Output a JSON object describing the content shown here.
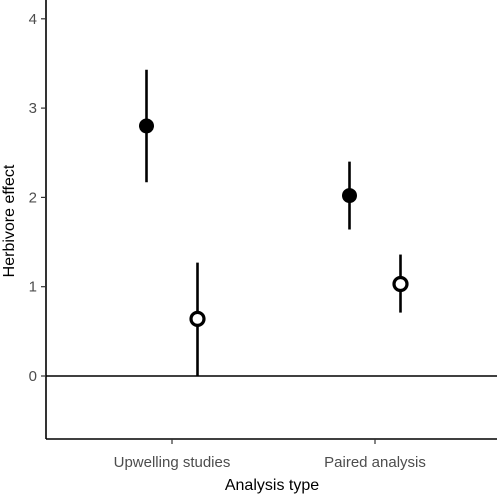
{
  "chart_data": {
    "type": "scatter",
    "title": "",
    "xlabel": "Analysis type",
    "ylabel": "Herbivore effect",
    "categories": [
      "Upwelling studies",
      "Paired analysis"
    ],
    "ylim": [
      -0.7,
      4.25
    ],
    "yticks": [
      0,
      1,
      2,
      3,
      4
    ],
    "reference_line_y": 0,
    "grid": false,
    "legend": "none",
    "series": [
      {
        "marker": "filled-circle",
        "points": [
          {
            "category": "Upwelling studies",
            "y": 2.8,
            "lower": 2.17,
            "upper": 3.43
          },
          {
            "category": "Paired analysis",
            "y": 2.02,
            "lower": 1.64,
            "upper": 2.4
          }
        ]
      },
      {
        "marker": "open-circle",
        "points": [
          {
            "category": "Upwelling studies",
            "y": 0.64,
            "lower": 0.0,
            "upper": 1.27
          },
          {
            "category": "Paired analysis",
            "y": 1.03,
            "lower": 0.71,
            "upper": 1.36
          }
        ]
      }
    ],
    "colors": {
      "marks": "#000000",
      "tick_labels": "#4d4d4d",
      "background": "#ffffff"
    }
  }
}
